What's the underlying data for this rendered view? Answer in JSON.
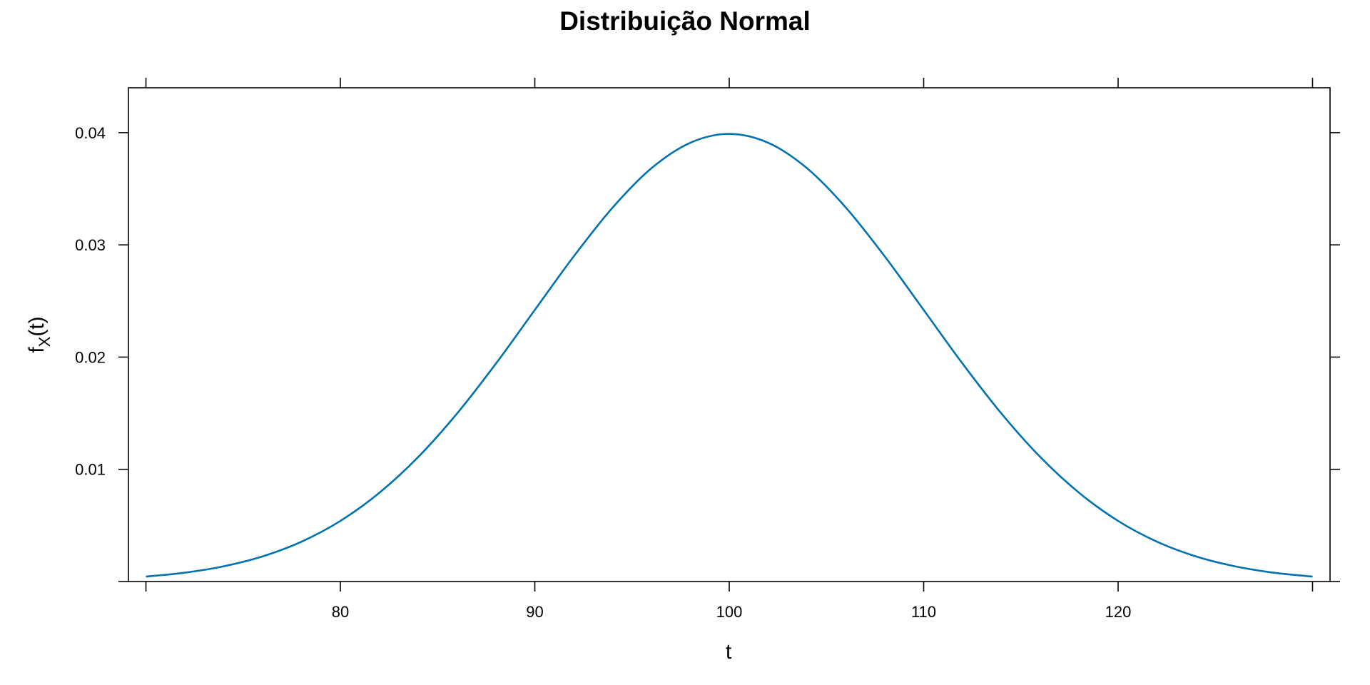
{
  "chart_data": {
    "type": "line",
    "title": "Distribuição Normal",
    "xlabel": "t",
    "ylabel": {
      "main": "f",
      "subscript": "X",
      "suffix": "(t)"
    },
    "xlim": [
      69.1,
      130.9
    ],
    "ylim": [
      0,
      0.044
    ],
    "xticks": [
      80,
      90,
      100,
      110,
      120
    ],
    "xtick_labels": [
      "80",
      "90",
      "100",
      "110",
      "120"
    ],
    "yticks": [
      0.01,
      0.02,
      0.03,
      0.04
    ],
    "ytick_labels": [
      "0.01",
      "0.02",
      "0.03",
      "0.04"
    ],
    "grid": false,
    "series": [
      {
        "color": "#0072b2",
        "x": [
          70,
          72,
          74,
          76,
          78,
          80,
          82,
          84,
          86,
          88,
          90,
          92,
          94,
          96,
          98,
          100,
          102,
          104,
          106,
          108,
          110,
          112,
          114,
          116,
          118,
          120,
          122,
          124,
          126,
          128,
          130
        ],
        "y": [
          0.00044,
          0.00079,
          0.00136,
          0.00224,
          0.00355,
          0.0054,
          0.0079,
          0.01109,
          0.01497,
          0.01942,
          0.0242,
          0.02897,
          0.03332,
          0.03683,
          0.0391,
          0.03989,
          0.0391,
          0.03683,
          0.03332,
          0.02897,
          0.0242,
          0.01942,
          0.01497,
          0.01109,
          0.0079,
          0.0054,
          0.00355,
          0.00224,
          0.00136,
          0.00079,
          0.00044
        ]
      }
    ]
  }
}
